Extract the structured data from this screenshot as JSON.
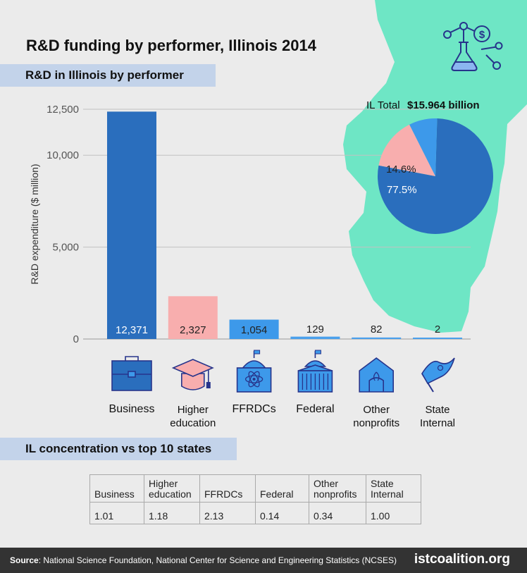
{
  "title": "R&D funding by performer, Illinois 2014",
  "section1_label": "R&D in Illinois by performer",
  "section2_label": "IL concentration vs top 10 states",
  "colors": {
    "business": "#2a6ebd",
    "higher_education": "#f8aeae",
    "ffrdcs": "#3d99ea",
    "other": "#4aa0ec",
    "map": "#6ee6c5",
    "band": "#c3d3ea",
    "footer": "#333333"
  },
  "chart_data": [
    {
      "type": "bar",
      "ylabel": "R&D expenditure ($ million)",
      "ylim": [
        0,
        12500
      ],
      "yticks": [
        0,
        5000,
        10000,
        12500
      ],
      "ytick_labels": [
        "0",
        "5,000",
        "10,000",
        "12,500"
      ],
      "grid": true,
      "categories": [
        "Business",
        "Higher education",
        "FFRDCs",
        "Federal",
        "Other nonprofits",
        "State Internal"
      ],
      "category_labels": [
        [
          "Business"
        ],
        [
          "Higher",
          "education"
        ],
        [
          "FFRDCs"
        ],
        [
          "Federal"
        ],
        [
          "Other",
          "nonprofits"
        ],
        [
          "State",
          "Internal"
        ]
      ],
      "icons": [
        "briefcase-icon",
        "graduation-cap-icon",
        "atom-building-icon",
        "capitol-building-icon",
        "nonprofit-building-icon",
        "state-flag-icon"
      ],
      "values": [
        12371,
        2327,
        1054,
        129,
        82,
        2
      ],
      "value_labels": [
        "12,371",
        "2,327",
        "1,054",
        "129",
        "82",
        "2"
      ],
      "colors": [
        "#2a6ebd",
        "#f8aeae",
        "#3d99ea",
        "#4aa0ec",
        "#4aa0ec",
        "#4aa0ec"
      ]
    },
    {
      "type": "pie",
      "total_label": "IL Total",
      "total_value": "$15.964 billion",
      "slices": [
        {
          "value": 77.5,
          "label": "77.5%",
          "color": "#2a6ebd"
        },
        {
          "value": 14.6,
          "label": "14.6%",
          "color": "#f8aeae"
        },
        {
          "value": 7.9,
          "label": "",
          "color": "#3d99ea"
        }
      ]
    },
    {
      "type": "table",
      "headers": [
        [
          "Business"
        ],
        [
          "Higher",
          "education"
        ],
        [
          "FFRDCs"
        ],
        [
          "Federal"
        ],
        [
          "Other",
          "nonprofits"
        ],
        [
          "State",
          "Internal"
        ]
      ],
      "values": [
        "1.01",
        "1.18",
        "2.13",
        "0.14",
        "0.34",
        "1.00"
      ]
    }
  ],
  "footer": {
    "source_label": "Source",
    "source_text": ": National Science Foundation, National Center for Science and Engineering Statistics (NCSES)",
    "brand": "istcoalition.org"
  }
}
